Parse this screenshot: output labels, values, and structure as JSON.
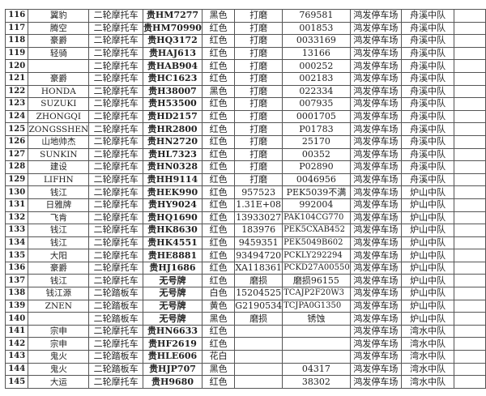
{
  "rows": [
    [
      "116",
      "翼豹",
      "二轮摩托车",
      "贵HM7277",
      "黑色",
      "打磨",
      "769581",
      "鸿发停车场",
      "舟溪中队",
      ""
    ],
    [
      "117",
      "腾空",
      "二轮摩托车",
      "贵HM70990",
      "红色",
      "打磨",
      "001853",
      "鸿发停车场",
      "舟溪中队",
      ""
    ],
    [
      "118",
      "豪爵",
      "二轮摩托车",
      "贵HQ3172",
      "红色",
      "打磨",
      "0033169",
      "鸿发停车场",
      "舟溪中队",
      ""
    ],
    [
      "119",
      "轻骑",
      "二轮摩托车",
      "贵HAJ613",
      "红色",
      "打磨",
      "13166",
      "鸿发停车场",
      "舟溪中队",
      ""
    ],
    [
      "120",
      "",
      "二轮摩托车",
      "贵HAB904",
      "红色",
      "打磨",
      "000252",
      "鸿发停车场",
      "舟溪中队",
      ""
    ],
    [
      "121",
      "豪爵",
      "二轮摩托车",
      "贵HC1623",
      "红色",
      "打磨",
      "002183",
      "鸿发停车场",
      "舟溪中队",
      ""
    ],
    [
      "122",
      "HONDA",
      "二轮摩托车",
      "贵H38007",
      "黑色",
      "打磨",
      "022334",
      "鸿发停车场",
      "舟溪中队",
      ""
    ],
    [
      "123",
      "SUZUKI",
      "二轮摩托车",
      "贵H53500",
      "红色",
      "打磨",
      "007935",
      "鸿发停车场",
      "舟溪中队",
      ""
    ],
    [
      "124",
      "ZHONGQI",
      "二轮摩托车",
      "贵HD2157",
      "红色",
      "打磨",
      "0001705",
      "鸿发停车场",
      "舟溪中队",
      ""
    ],
    [
      "125",
      "ZONGSSHEN",
      "二轮摩托车",
      "贵HR2800",
      "红色",
      "打磨",
      "P01783",
      "鸿发停车场",
      "舟溪中队",
      ""
    ],
    [
      "126",
      "山地帅杰",
      "二轮摩托车",
      "贵HN2720",
      "红色",
      "打磨",
      "25170",
      "鸿发停车场",
      "舟溪中队",
      ""
    ],
    [
      "127",
      "SUNKIN",
      "二轮摩托车",
      "贵HL7323",
      "红色",
      "打磨",
      "00352",
      "鸿发停车场",
      "舟溪中队",
      ""
    ],
    [
      "128",
      "建设",
      "二轮摩托车",
      "贵HN0328",
      "红色",
      "打磨",
      "P02890",
      "鸿发停车场",
      "舟溪中队",
      ""
    ],
    [
      "129",
      "LIFHN",
      "二轮摩托车",
      "贵HH9114",
      "红色",
      "打磨",
      "0046956",
      "鸿发停车场",
      "舟溪中队",
      ""
    ],
    [
      "130",
      "钱江",
      "二轮摩托车",
      "贵HEK990",
      "红色",
      "957523",
      "PEK5039不满",
      "鸿发停车场",
      "炉山中队",
      ""
    ],
    [
      "131",
      "日雅牌",
      "二轮摩托车",
      "贵HY9024",
      "红色",
      "1.31E+08",
      "992004",
      "鸿发停车场",
      "炉山中队",
      ""
    ],
    [
      "132",
      "飞肯",
      "二轮摩托车",
      "贵HQ1690",
      "红色",
      "13933027",
      "PAK104CG770",
      "鸿发停车场",
      "炉山中队",
      ""
    ],
    [
      "133",
      "钱江",
      "二轮摩托车",
      "贵HK8630",
      "红色",
      "183976",
      "PEK5CXAB452",
      "鸿发停车场",
      "炉山中队",
      ""
    ],
    [
      "134",
      "钱江",
      "二轮摩托车",
      "贵HK4551",
      "红色",
      "9459351",
      "PEK5049B602",
      "鸿发停车场",
      "炉山中队",
      ""
    ],
    [
      "135",
      "大阳",
      "二轮摩托车",
      "贵HE8881",
      "红色",
      "93494720",
      "PCKLY292294",
      "鸿发停车场",
      "炉山中队",
      ""
    ],
    [
      "136",
      "豪爵",
      "二轮摩托车",
      "贵HJ1686",
      "红色",
      "XA118361",
      "PCKD27A00550",
      "鸿发停车场",
      "炉山中队",
      ""
    ],
    [
      "137",
      "钱江",
      "二轮摩托车",
      "无号牌",
      "红色",
      "磨损",
      "磨损96155",
      "鸿发停车场",
      "炉山中队",
      ""
    ],
    [
      "138",
      "钱江源",
      "二轮踏板车",
      "无号牌",
      "白色",
      "15204525",
      "TCAJP2F20W3",
      "鸿发停车场",
      "炉山中队",
      ""
    ],
    [
      "139",
      "ZNEN",
      "二轮踏板车",
      "无号牌",
      "黄色",
      "G2190534",
      "TCJPA0G1350",
      "鸿发停车场",
      "炉山中队",
      ""
    ],
    [
      "140",
      "",
      "二轮踏板车",
      "无号牌",
      "黑色",
      "磨损",
      "锈蚀",
      "鸿发停车场",
      "炉山中队",
      ""
    ],
    [
      "141",
      "宗申",
      "二轮摩托车",
      "贵HN6633",
      "红色",
      "",
      "",
      "鸿发停车场",
      "湾水中队",
      ""
    ],
    [
      "142",
      "宗申",
      "二轮摩托车",
      "贵HF2619",
      "红色",
      "",
      "",
      "鸿发停车场",
      "湾水中队",
      ""
    ],
    [
      "143",
      "鬼火",
      "二轮踏板车",
      "贵HLE606",
      "花白",
      "",
      "",
      "鸿发停车场",
      "湾水中队",
      ""
    ],
    [
      "144",
      "鬼火",
      "二轮踏板车",
      "贵HJP707",
      "黑色",
      "",
      "04317",
      "鸿发停车场",
      "湾水中队",
      ""
    ],
    [
      "145",
      "大运",
      "二轮摩托车",
      "贵H9680",
      "红色",
      "",
      "38302",
      "鸿发停车场",
      "湾水中队",
      ""
    ]
  ]
}
